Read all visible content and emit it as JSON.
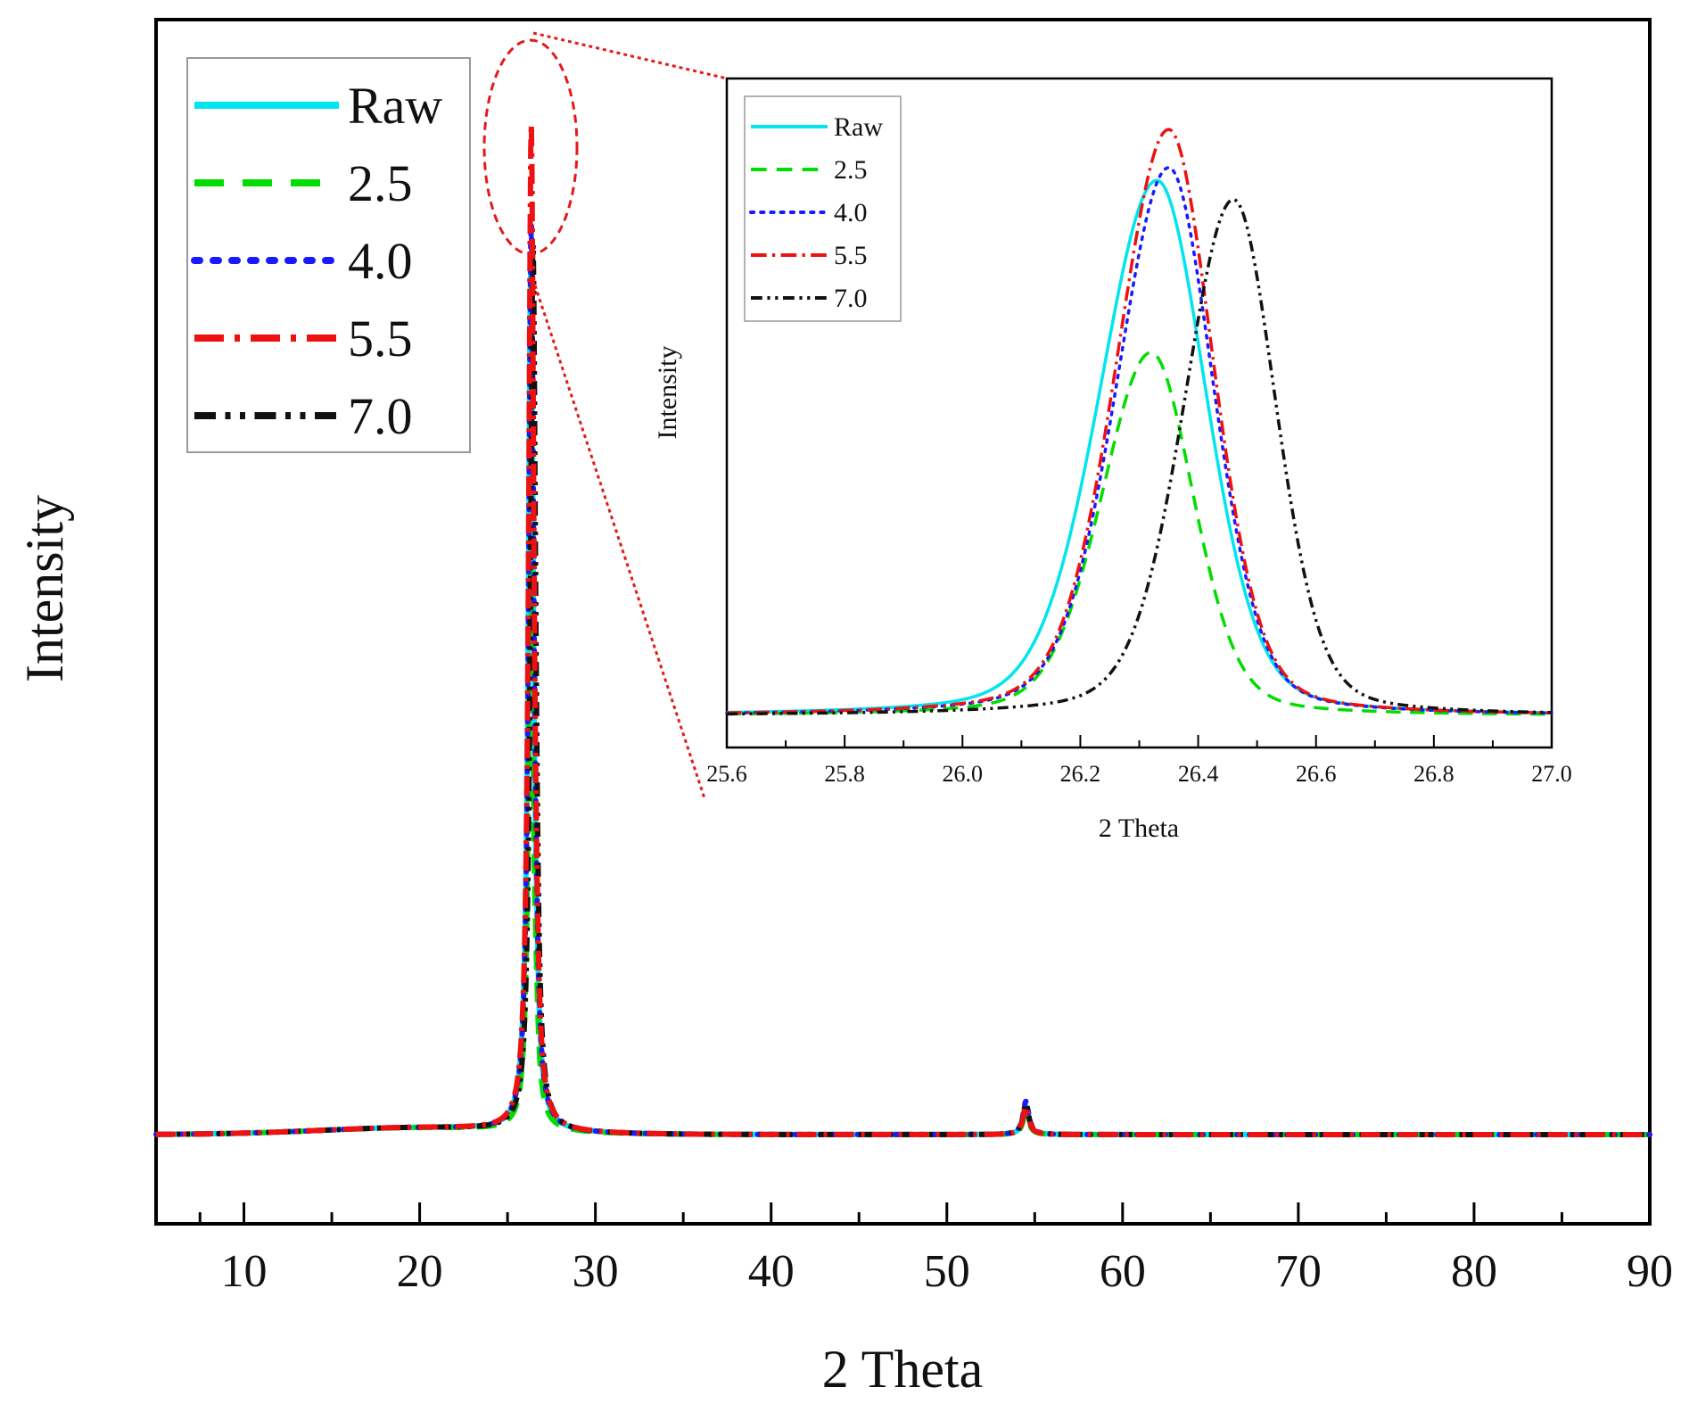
{
  "chart_data": [
    {
      "name": "main",
      "type": "line",
      "title": "",
      "xlabel": "2 Theta",
      "ylabel": "Intensity",
      "xlim": [
        5,
        90
      ],
      "ylim": [
        -0.08,
        1.0
      ],
      "x_ticks": [
        10,
        20,
        30,
        40,
        50,
        60,
        70,
        80,
        90
      ],
      "x_tick_labels": [
        "10",
        "20",
        "30",
        "40",
        "50",
        "60",
        "70",
        "80",
        "90"
      ],
      "y_ticks_shown": false,
      "legend_position": "top-left",
      "series": [
        {
          "name": "Raw",
          "color": "#00e5ee",
          "style": "solid",
          "peaks": [
            {
              "x": 26.33,
              "height": 0.78,
              "width": 0.18
            },
            {
              "x": 54.5,
              "height": 0.025,
              "width": 0.2
            }
          ]
        },
        {
          "name": "2.5",
          "color": "#00dd00",
          "style": "dashed",
          "peaks": [
            {
              "x": 26.33,
              "height": 0.5,
              "width": 0.18
            },
            {
              "x": 54.5,
              "height": 0.02,
              "width": 0.2
            }
          ]
        },
        {
          "name": "4.0",
          "color": "#1a1aff",
          "style": "dotted",
          "peaks": [
            {
              "x": 26.35,
              "height": 0.81,
              "width": 0.18
            },
            {
              "x": 54.5,
              "height": 0.03,
              "width": 0.2
            }
          ]
        },
        {
          "name": "5.5",
          "color": "#ee1111",
          "style": "dashdot",
          "peaks": [
            {
              "x": 26.35,
              "height": 0.9,
              "width": 0.18
            },
            {
              "x": 54.5,
              "height": 0.025,
              "width": 0.2
            }
          ]
        },
        {
          "name": "7.0",
          "color": "#111111",
          "style": "dashdotdot",
          "peaks": [
            {
              "x": 26.45,
              "height": 0.79,
              "width": 0.18
            },
            {
              "x": 54.5,
              "height": 0.028,
              "width": 0.2
            }
          ]
        }
      ]
    },
    {
      "name": "inset",
      "type": "line",
      "title": "",
      "xlabel": "2 Theta",
      "ylabel": "Intensity",
      "xlim": [
        25.6,
        27.0
      ],
      "ylim": [
        -0.05,
        1.0
      ],
      "x_ticks": [
        25.6,
        25.8,
        26.0,
        26.2,
        26.4,
        26.6,
        26.8,
        27.0
      ],
      "x_tick_labels": [
        "25.6",
        "25.8",
        "26.0",
        "26.2",
        "26.4",
        "26.6",
        "26.8",
        "27.0"
      ],
      "y_ticks_shown": false,
      "legend_position": "top-left",
      "series": [
        {
          "name": "Raw",
          "color": "#00e5ee",
          "style": "solid",
          "peak_x": 26.33,
          "peak_height": 0.84,
          "half_width": 0.11
        },
        {
          "name": "2.5",
          "color": "#00dd00",
          "style": "dashed",
          "peak_x": 26.32,
          "peak_height": 0.57,
          "half_width": 0.095
        },
        {
          "name": "4.0",
          "color": "#1a1aff",
          "style": "dotted",
          "peak_x": 26.35,
          "peak_height": 0.86,
          "half_width": 0.1
        },
        {
          "name": "5.5",
          "color": "#ee1111",
          "style": "dashdot",
          "peak_x": 26.35,
          "peak_height": 0.92,
          "half_width": 0.1
        },
        {
          "name": "7.0",
          "color": "#111111",
          "style": "dashdotdot",
          "peak_x": 26.46,
          "peak_height": 0.81,
          "half_width": 0.095
        }
      ]
    }
  ],
  "annotations": {
    "zoom_ellipse_color": "#e31a1c"
  }
}
